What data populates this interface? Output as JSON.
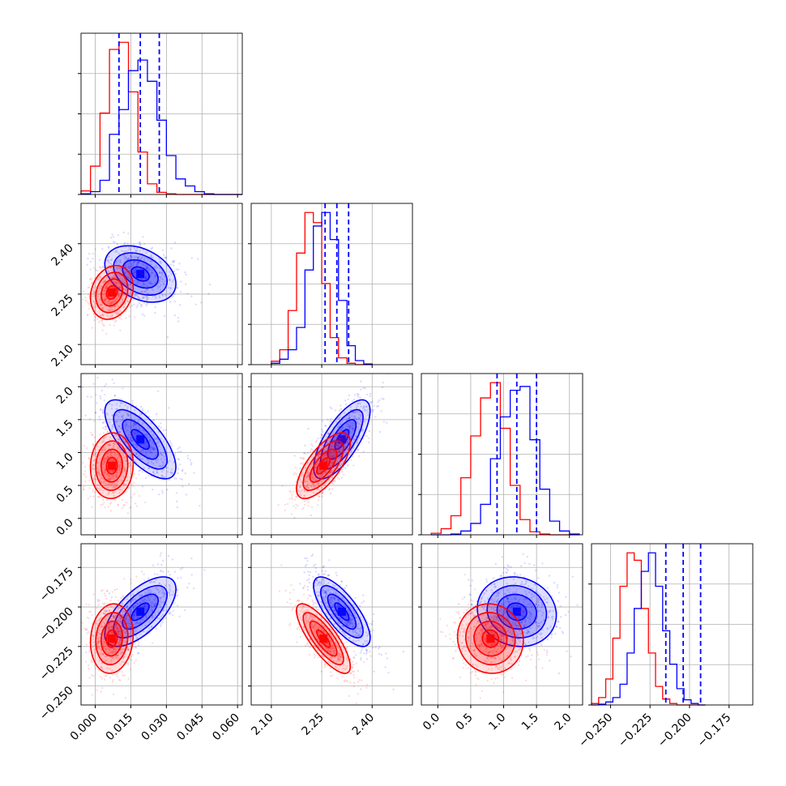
{
  "chart_data": {
    "type": "corner",
    "title": "",
    "parameters": [
      {
        "range": [
          -0.006,
          0.062
        ],
        "ticks": [
          0.0,
          0.015,
          0.03,
          0.045,
          0.06
        ],
        "tick_labels": [
          "0.000",
          "0.015",
          "0.030",
          "0.045",
          "0.060"
        ]
      },
      {
        "range": [
          2.04,
          2.52
        ],
        "ticks": [
          2.1,
          2.25,
          2.4
        ],
        "tick_labels": [
          "2.10",
          "2.25",
          "2.40"
        ]
      },
      {
        "range": [
          -0.25,
          2.2
        ],
        "ticks": [
          0.0,
          0.5,
          1.0,
          1.5,
          2.0
        ],
        "tick_labels": [
          "0.0",
          "0.5",
          "1.0",
          "1.5",
          "2.0"
        ]
      },
      {
        "range": [
          -0.262,
          -0.16
        ],
        "ticks": [
          -0.25,
          -0.225,
          -0.2,
          -0.175
        ],
        "tick_labels": [
          "−0.250",
          "−0.225",
          "−0.200",
          "−0.175"
        ]
      }
    ],
    "series": [
      {
        "color": "#0000ff",
        "mean": [
          0.019,
          2.31,
          1.2,
          -0.203
        ],
        "std": [
          0.0075,
          0.042,
          0.3,
          0.011
        ],
        "corr": [
          [
            1,
            -0.35,
            -0.7,
            0.65
          ],
          [
            -0.35,
            1,
            0.72,
            -0.75
          ],
          [
            -0.7,
            0.72,
            1,
            -0.1
          ],
          [
            0.65,
            -0.75,
            -0.1,
            1
          ]
        ],
        "histograms": [
          {
            "x0": -0.006,
            "dx": 0.004,
            "counts": [
              1,
              4,
              20,
              85,
              120,
              175,
              190,
              160,
              105,
              55,
              22,
              12,
              4,
              1,
              0,
              0,
              0
            ]
          },
          {
            "x0": 2.1,
            "dx": 0.025,
            "counts": [
              2,
              8,
              22,
              55,
              140,
              205,
              225,
              185,
              95,
              28,
              6,
              1
            ]
          },
          {
            "x0": -0.1,
            "dx": 0.15,
            "counts": [
              0,
              0,
              1,
              5,
              15,
              40,
              100,
              155,
              190,
              195,
              125,
              60,
              18,
              5,
              1
            ]
          },
          {
            "x0": -0.262,
            "dx": 0.0045,
            "counts": [
              0,
              1,
              4,
              10,
              28,
              70,
              130,
              180,
              205,
              160,
              100,
              55,
              22,
              7,
              2,
              0
            ]
          }
        ],
        "quantiles": [
          [
            0.01,
            0.019,
            0.027
          ],
          [
            2.26,
            2.295,
            2.33
          ],
          [
            0.9,
            1.2,
            1.5
          ],
          [
            -0.215,
            -0.204,
            -0.193
          ]
        ]
      },
      {
        "color": "#ff0000",
        "mean": [
          0.007,
          2.255,
          0.8,
          -0.22
        ],
        "std": [
          0.0045,
          0.04,
          0.25,
          0.011
        ],
        "corr": [
          [
            1,
            0.2,
            0.05,
            0.1
          ],
          [
            0.2,
            1,
            0.7,
            -0.8
          ],
          [
            0.05,
            0.7,
            1,
            -0.05
          ],
          [
            0.1,
            -0.8,
            -0.05,
            1
          ]
        ],
        "histograms": [
          {
            "x0": -0.006,
            "dx": 0.004,
            "counts": [
              5,
              40,
              115,
              205,
              215,
              145,
              60,
              15,
              3,
              1,
              0,
              0,
              0,
              0,
              0,
              0,
              0
            ]
          },
          {
            "x0": 2.1,
            "dx": 0.025,
            "counts": [
              5,
              22,
              80,
              165,
              225,
              210,
              120,
              40,
              10,
              2,
              0,
              0
            ]
          },
          {
            "x0": -0.1,
            "dx": 0.15,
            "counts": [
              2,
              8,
              25,
              75,
              130,
              180,
              200,
              140,
              65,
              20,
              4,
              1,
              0,
              0,
              0
            ]
          },
          {
            "x0": -0.262,
            "dx": 0.0045,
            "counts": [
              2,
              10,
              35,
              90,
              160,
              205,
              195,
              130,
              70,
              25,
              8,
              2,
              0,
              0,
              0,
              0
            ]
          }
        ]
      }
    ]
  }
}
